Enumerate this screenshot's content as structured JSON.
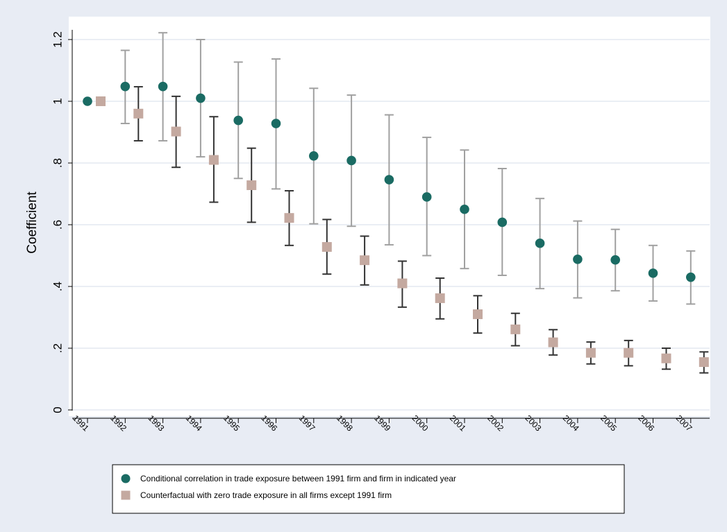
{
  "chart_data": {
    "type": "scatter",
    "title": "",
    "xlabel": "",
    "ylabel": "Coefficient",
    "ylim": [
      0,
      1.2
    ],
    "yticks": [
      0,
      0.2,
      0.4,
      0.6,
      0.8,
      1,
      1.2
    ],
    "ytick_labels": [
      "0",
      ".2",
      ".4",
      ".6",
      ".8",
      "1",
      "1.2"
    ],
    "categories": [
      "1991",
      "1992",
      "1993",
      "1994",
      "1995",
      "1996",
      "1997",
      "1998",
      "1999",
      "2000",
      "2001",
      "2002",
      "2003",
      "2004",
      "2005",
      "2006",
      "2007"
    ],
    "grid": true,
    "legend_position": "bottom",
    "series": [
      {
        "name": "Conditional correlation in trade exposure between 1991 firm and firm in indicated year",
        "marker": "circle",
        "color": "#1a6b63",
        "ci_color": "#a0a0a0",
        "values": [
          1.0,
          1.048,
          1.048,
          1.01,
          0.938,
          0.928,
          0.823,
          0.808,
          0.746,
          0.69,
          0.65,
          0.608,
          0.54,
          0.488,
          0.486,
          0.443,
          0.43
        ],
        "lower": [
          null,
          0.928,
          0.872,
          0.82,
          0.75,
          0.716,
          0.603,
          0.595,
          0.535,
          0.5,
          0.458,
          0.436,
          0.393,
          0.363,
          0.386,
          0.353,
          0.343
        ],
        "upper": [
          null,
          1.165,
          1.222,
          1.2,
          1.127,
          1.137,
          1.042,
          1.02,
          0.956,
          0.883,
          0.842,
          0.782,
          0.685,
          0.612,
          0.585,
          0.533,
          0.515
        ]
      },
      {
        "name": "Counterfactual with zero trade exposure in all firms except 1991 firm",
        "marker": "square",
        "color": "#c4a9a0",
        "ci_color": "#333333",
        "values": [
          1.0,
          0.96,
          0.902,
          0.81,
          0.728,
          0.622,
          0.528,
          0.485,
          0.41,
          0.362,
          0.31,
          0.261,
          0.219,
          0.185,
          0.185,
          0.167,
          0.155
        ],
        "lower": [
          null,
          0.872,
          0.786,
          0.673,
          0.608,
          0.533,
          0.44,
          0.405,
          0.333,
          0.295,
          0.249,
          0.208,
          0.178,
          0.149,
          0.143,
          0.132,
          0.12
        ],
        "upper": [
          null,
          1.047,
          1.016,
          0.95,
          0.848,
          0.71,
          0.617,
          0.563,
          0.482,
          0.427,
          0.37,
          0.313,
          0.26,
          0.22,
          0.225,
          0.2,
          0.188
        ]
      }
    ]
  },
  "colors": {
    "background": "#e8ecf4",
    "plot_background": "#ffffff",
    "grid": "#e4e8f0"
  }
}
